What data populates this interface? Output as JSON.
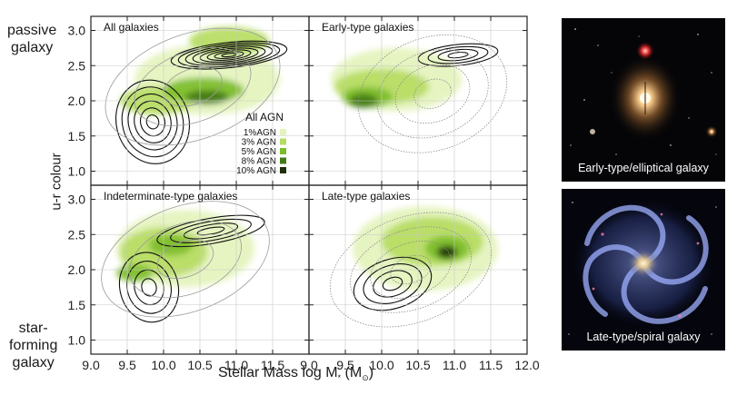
{
  "labels": {
    "passive": [
      "passive",
      "galaxy"
    ],
    "starforming": [
      "star-",
      "forming",
      "galaxy"
    ],
    "y_title": "u-r colour",
    "x_title_main": "Stellar Mass log M",
    "x_title_sub": "*",
    "x_title_unit": " (M",
    "x_title_sun": "⊙",
    "x_title_close": ")"
  },
  "legend": {
    "title": "All AGN",
    "items": [
      {
        "label": "1%AGN",
        "color": "#e4f3bc"
      },
      {
        "label": "3% AGN",
        "color": "#b6dc62"
      },
      {
        "label": "5% AGN",
        "color": "#7cbd2a"
      },
      {
        "label": "8% AGN",
        "color": "#417a17"
      },
      {
        "label": "10% AGN",
        "color": "#1c2f0c"
      }
    ]
  },
  "photos": [
    {
      "caption": "Early-type/elliptical galaxy"
    },
    {
      "caption": "Late-type/spiral galaxy"
    }
  ],
  "chart_data": {
    "type": "contour",
    "xlim": [
      9.0,
      12.0
    ],
    "ylim": [
      0.8,
      3.2
    ],
    "xlabel": "Stellar Mass log M* (M⊙)",
    "ylabel": "u-r colour",
    "x_ticks_left": [
      "9.0",
      "9.5",
      "10.0",
      "10.5",
      "11.0",
      "11.5"
    ],
    "x_ticks_right": [
      "9.0",
      "9.5",
      "10.0",
      "10.5",
      "11.0",
      "11.5",
      "12.0"
    ],
    "y_ticks": [
      "1.0",
      "1.5",
      "2.0",
      "2.5",
      "3.0"
    ],
    "shade_colors": [
      "#e4f3bc",
      "#b6dc62",
      "#7cbd2a",
      "#417a17",
      "#1c2f0c"
    ],
    "panels": [
      {
        "title": "All galaxies",
        "shading": [
          {
            "x": 10.6,
            "y": 2.3,
            "rx": 1.0,
            "ry": 0.5,
            "level": 0
          },
          {
            "x": 10.9,
            "y": 2.85,
            "rx": 0.55,
            "ry": 0.2,
            "level": 1
          },
          {
            "x": 9.9,
            "y": 2.0,
            "rx": 0.5,
            "ry": 0.2,
            "level": 1
          },
          {
            "x": 10.55,
            "y": 2.15,
            "rx": 0.55,
            "ry": 0.18,
            "level": 2
          },
          {
            "x": 10.6,
            "y": 2.05,
            "rx": 0.3,
            "ry": 0.1,
            "level": 3
          }
        ],
        "contours": [
          {
            "x": 9.85,
            "y": 1.7,
            "rx": 0.5,
            "ry": 0.6,
            "angle": -15,
            "style": "solid",
            "n": 6
          },
          {
            "x": 10.9,
            "y": 2.65,
            "rx": 0.8,
            "ry": 0.18,
            "angle": -6,
            "style": "solid",
            "n": 8
          },
          {
            "x": 10.4,
            "y": 2.2,
            "rx": 1.25,
            "ry": 0.75,
            "angle": -20,
            "style": "gray",
            "n": 3
          }
        ]
      },
      {
        "title": "Early-type galaxies",
        "shading": [
          {
            "x": 10.2,
            "y": 2.3,
            "rx": 0.9,
            "ry": 0.45,
            "level": 0
          },
          {
            "x": 10.0,
            "y": 2.2,
            "rx": 0.65,
            "ry": 0.25,
            "level": 1
          },
          {
            "x": 9.8,
            "y": 2.05,
            "rx": 0.35,
            "ry": 0.15,
            "level": 2
          },
          {
            "x": 9.75,
            "y": 2.0,
            "rx": 0.2,
            "ry": 0.1,
            "level": 3
          }
        ],
        "contours": [
          {
            "x": 11.05,
            "y": 2.65,
            "rx": 0.55,
            "ry": 0.15,
            "angle": -6,
            "style": "solid",
            "n": 4
          },
          {
            "x": 10.7,
            "y": 2.1,
            "rx": 1.05,
            "ry": 0.8,
            "angle": -20,
            "style": "dotted",
            "n": 4
          }
        ]
      },
      {
        "title": "Indeterminate-type galaxies",
        "shading": [
          {
            "x": 10.3,
            "y": 2.3,
            "rx": 0.95,
            "ry": 0.55,
            "level": 0
          },
          {
            "x": 10.0,
            "y": 2.25,
            "rx": 0.6,
            "ry": 0.35,
            "level": 1
          },
          {
            "x": 10.1,
            "y": 2.35,
            "rx": 0.3,
            "ry": 0.15,
            "level": 2
          },
          {
            "x": 9.6,
            "y": 1.95,
            "rx": 0.25,
            "ry": 0.12,
            "level": 2
          }
        ],
        "contours": [
          {
            "x": 9.8,
            "y": 1.75,
            "rx": 0.4,
            "ry": 0.5,
            "angle": -15,
            "style": "solid",
            "n": 4
          },
          {
            "x": 10.65,
            "y": 2.55,
            "rx": 0.75,
            "ry": 0.18,
            "angle": -10,
            "style": "solid",
            "n": 4
          },
          {
            "x": 10.3,
            "y": 2.15,
            "rx": 1.2,
            "ry": 0.75,
            "angle": -20,
            "style": "gray",
            "n": 3
          }
        ]
      },
      {
        "title": "Late-type galaxies",
        "shading": [
          {
            "x": 10.6,
            "y": 2.3,
            "rx": 1.0,
            "ry": 0.6,
            "level": 0
          },
          {
            "x": 10.7,
            "y": 2.4,
            "rx": 0.7,
            "ry": 0.35,
            "level": 1
          },
          {
            "x": 10.9,
            "y": 2.3,
            "rx": 0.3,
            "ry": 0.18,
            "level": 2
          },
          {
            "x": 10.9,
            "y": 2.25,
            "rx": 0.14,
            "ry": 0.09,
            "level": 4
          }
        ],
        "contours": [
          {
            "x": 10.15,
            "y": 1.8,
            "rx": 0.55,
            "ry": 0.35,
            "angle": -18,
            "style": "solid",
            "n": 4
          },
          {
            "x": 10.4,
            "y": 2.0,
            "rx": 1.15,
            "ry": 0.75,
            "angle": -20,
            "style": "dotted",
            "n": 4
          }
        ]
      }
    ]
  }
}
